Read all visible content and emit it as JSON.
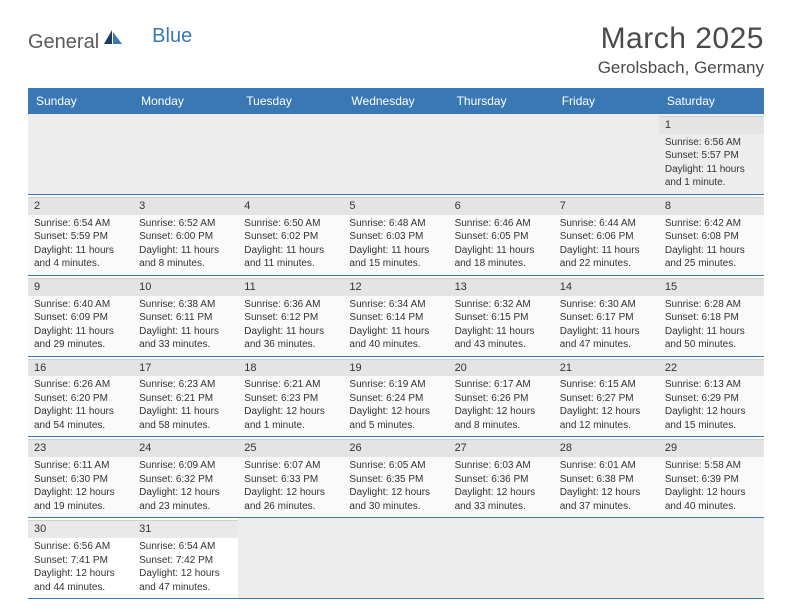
{
  "brand": {
    "part1": "General",
    "part2": "Blue"
  },
  "header": {
    "title": "March 2025",
    "location": "Gerolsbach, Germany"
  },
  "colors": {
    "header_bg": "#3a78b5",
    "header_text": "#ffffff",
    "row_divider": "#3a78b5",
    "daynum_bg": "#e4e4e4",
    "body_text": "#333333",
    "logo_gray": "#5a5a5a",
    "logo_blue": "#3a78b5"
  },
  "typography": {
    "title_fontsize": 30,
    "location_fontsize": 17,
    "dayhead_fontsize": 12,
    "cell_fontsize": 10
  },
  "days": [
    "Sunday",
    "Monday",
    "Tuesday",
    "Wednesday",
    "Thursday",
    "Friday",
    "Saturday"
  ],
  "weeks": [
    [
      null,
      null,
      null,
      null,
      null,
      null,
      {
        "n": "1",
        "sr": "Sunrise: 6:56 AM",
        "ss": "Sunset: 5:57 PM",
        "dl": "Daylight: 11 hours and 1 minute."
      }
    ],
    [
      {
        "n": "2",
        "sr": "Sunrise: 6:54 AM",
        "ss": "Sunset: 5:59 PM",
        "dl": "Daylight: 11 hours and 4 minutes."
      },
      {
        "n": "3",
        "sr": "Sunrise: 6:52 AM",
        "ss": "Sunset: 6:00 PM",
        "dl": "Daylight: 11 hours and 8 minutes."
      },
      {
        "n": "4",
        "sr": "Sunrise: 6:50 AM",
        "ss": "Sunset: 6:02 PM",
        "dl": "Daylight: 11 hours and 11 minutes."
      },
      {
        "n": "5",
        "sr": "Sunrise: 6:48 AM",
        "ss": "Sunset: 6:03 PM",
        "dl": "Daylight: 11 hours and 15 minutes."
      },
      {
        "n": "6",
        "sr": "Sunrise: 6:46 AM",
        "ss": "Sunset: 6:05 PM",
        "dl": "Daylight: 11 hours and 18 minutes."
      },
      {
        "n": "7",
        "sr": "Sunrise: 6:44 AM",
        "ss": "Sunset: 6:06 PM",
        "dl": "Daylight: 11 hours and 22 minutes."
      },
      {
        "n": "8",
        "sr": "Sunrise: 6:42 AM",
        "ss": "Sunset: 6:08 PM",
        "dl": "Daylight: 11 hours and 25 minutes."
      }
    ],
    [
      {
        "n": "9",
        "sr": "Sunrise: 6:40 AM",
        "ss": "Sunset: 6:09 PM",
        "dl": "Daylight: 11 hours and 29 minutes."
      },
      {
        "n": "10",
        "sr": "Sunrise: 6:38 AM",
        "ss": "Sunset: 6:11 PM",
        "dl": "Daylight: 11 hours and 33 minutes."
      },
      {
        "n": "11",
        "sr": "Sunrise: 6:36 AM",
        "ss": "Sunset: 6:12 PM",
        "dl": "Daylight: 11 hours and 36 minutes."
      },
      {
        "n": "12",
        "sr": "Sunrise: 6:34 AM",
        "ss": "Sunset: 6:14 PM",
        "dl": "Daylight: 11 hours and 40 minutes."
      },
      {
        "n": "13",
        "sr": "Sunrise: 6:32 AM",
        "ss": "Sunset: 6:15 PM",
        "dl": "Daylight: 11 hours and 43 minutes."
      },
      {
        "n": "14",
        "sr": "Sunrise: 6:30 AM",
        "ss": "Sunset: 6:17 PM",
        "dl": "Daylight: 11 hours and 47 minutes."
      },
      {
        "n": "15",
        "sr": "Sunrise: 6:28 AM",
        "ss": "Sunset: 6:18 PM",
        "dl": "Daylight: 11 hours and 50 minutes."
      }
    ],
    [
      {
        "n": "16",
        "sr": "Sunrise: 6:26 AM",
        "ss": "Sunset: 6:20 PM",
        "dl": "Daylight: 11 hours and 54 minutes."
      },
      {
        "n": "17",
        "sr": "Sunrise: 6:23 AM",
        "ss": "Sunset: 6:21 PM",
        "dl": "Daylight: 11 hours and 58 minutes."
      },
      {
        "n": "18",
        "sr": "Sunrise: 6:21 AM",
        "ss": "Sunset: 6:23 PM",
        "dl": "Daylight: 12 hours and 1 minute."
      },
      {
        "n": "19",
        "sr": "Sunrise: 6:19 AM",
        "ss": "Sunset: 6:24 PM",
        "dl": "Daylight: 12 hours and 5 minutes."
      },
      {
        "n": "20",
        "sr": "Sunrise: 6:17 AM",
        "ss": "Sunset: 6:26 PM",
        "dl": "Daylight: 12 hours and 8 minutes."
      },
      {
        "n": "21",
        "sr": "Sunrise: 6:15 AM",
        "ss": "Sunset: 6:27 PM",
        "dl": "Daylight: 12 hours and 12 minutes."
      },
      {
        "n": "22",
        "sr": "Sunrise: 6:13 AM",
        "ss": "Sunset: 6:29 PM",
        "dl": "Daylight: 12 hours and 15 minutes."
      }
    ],
    [
      {
        "n": "23",
        "sr": "Sunrise: 6:11 AM",
        "ss": "Sunset: 6:30 PM",
        "dl": "Daylight: 12 hours and 19 minutes."
      },
      {
        "n": "24",
        "sr": "Sunrise: 6:09 AM",
        "ss": "Sunset: 6:32 PM",
        "dl": "Daylight: 12 hours and 23 minutes."
      },
      {
        "n": "25",
        "sr": "Sunrise: 6:07 AM",
        "ss": "Sunset: 6:33 PM",
        "dl": "Daylight: 12 hours and 26 minutes."
      },
      {
        "n": "26",
        "sr": "Sunrise: 6:05 AM",
        "ss": "Sunset: 6:35 PM",
        "dl": "Daylight: 12 hours and 30 minutes."
      },
      {
        "n": "27",
        "sr": "Sunrise: 6:03 AM",
        "ss": "Sunset: 6:36 PM",
        "dl": "Daylight: 12 hours and 33 minutes."
      },
      {
        "n": "28",
        "sr": "Sunrise: 6:01 AM",
        "ss": "Sunset: 6:38 PM",
        "dl": "Daylight: 12 hours and 37 minutes."
      },
      {
        "n": "29",
        "sr": "Sunrise: 5:58 AM",
        "ss": "Sunset: 6:39 PM",
        "dl": "Daylight: 12 hours and 40 minutes."
      }
    ],
    [
      {
        "n": "30",
        "sr": "Sunrise: 6:56 AM",
        "ss": "Sunset: 7:41 PM",
        "dl": "Daylight: 12 hours and 44 minutes."
      },
      {
        "n": "31",
        "sr": "Sunrise: 6:54 AM",
        "ss": "Sunset: 7:42 PM",
        "dl": "Daylight: 12 hours and 47 minutes."
      },
      null,
      null,
      null,
      null,
      null
    ]
  ]
}
